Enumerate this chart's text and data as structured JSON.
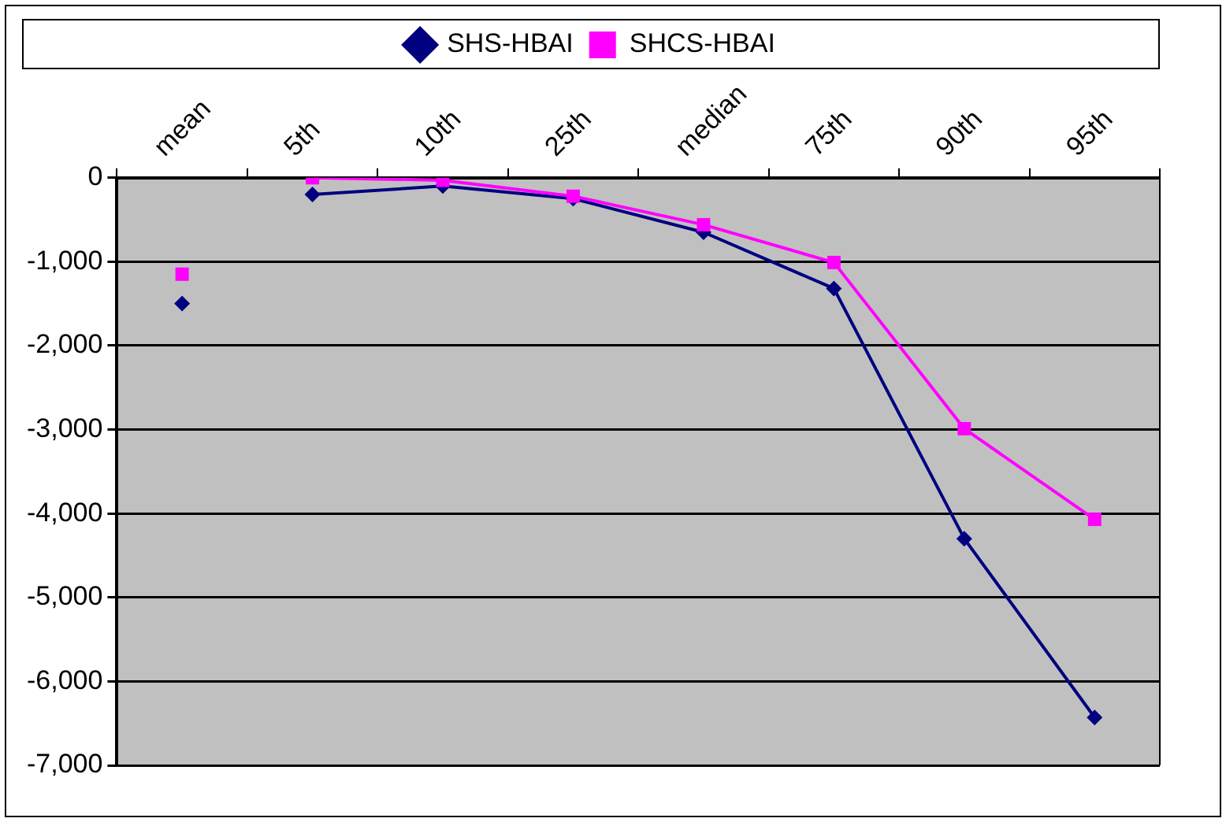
{
  "chart_data": {
    "type": "line",
    "categories": [
      "mean",
      "5th",
      "10th",
      "25th",
      "median",
      "75th",
      "90th",
      "95th"
    ],
    "series": [
      {
        "name": "SHS-HBAI",
        "color": "#000080",
        "marker": "diamond",
        "values": [
          null,
          -200,
          -100,
          -250,
          -650,
          -1320,
          -4300,
          -6430
        ]
      },
      {
        "name": "SHCS-HBAI",
        "color": "#ff00ff",
        "marker": "square",
        "values": [
          null,
          0,
          -30,
          -220,
          -560,
          -1010,
          -2990,
          -4070
        ]
      },
      {
        "type": "scatter",
        "color": "#000080",
        "marker": "diamond",
        "values": [
          -1500,
          null,
          null,
          null,
          null,
          null,
          null,
          null
        ]
      },
      {
        "type": "scatter",
        "color": "#ff00ff",
        "marker": "square",
        "values": [
          -1150,
          null,
          null,
          null,
          null,
          null,
          null,
          null
        ]
      }
    ],
    "ylim": [
      -7000,
      0
    ],
    "yticks": [
      {
        "value": 0,
        "label": "0"
      },
      {
        "value": -1000,
        "label": "-1,000"
      },
      {
        "value": -2000,
        "label": "-2,000"
      },
      {
        "value": -3000,
        "label": "-3,000"
      },
      {
        "value": -4000,
        "label": "-4,000"
      },
      {
        "value": -5000,
        "label": "-5,000"
      },
      {
        "value": -6000,
        "label": "-6,000"
      },
      {
        "value": -7000,
        "label": "-7,000"
      }
    ],
    "grid": "y",
    "legend": "top",
    "line_style": "solid"
  }
}
